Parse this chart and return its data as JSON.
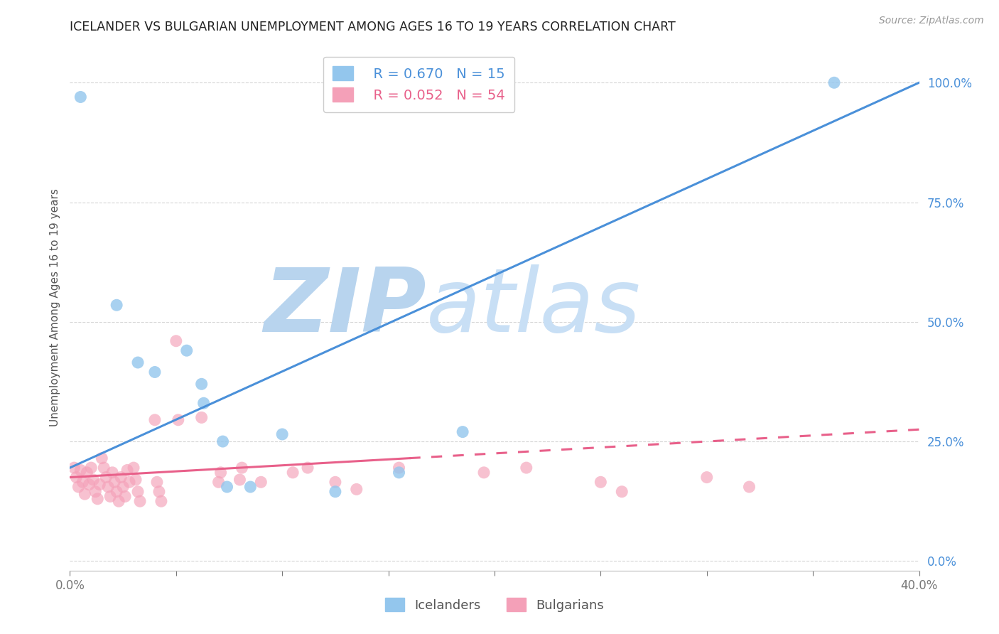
{
  "title": "ICELANDER VS BULGARIAN UNEMPLOYMENT AMONG AGES 16 TO 19 YEARS CORRELATION CHART",
  "source": "Source: ZipAtlas.com",
  "ylabel": "Unemployment Among Ages 16 to 19 years",
  "xlim": [
    0.0,
    0.4
  ],
  "ylim": [
    -0.02,
    1.08
  ],
  "yticks": [
    0.0,
    0.25,
    0.5,
    0.75,
    1.0
  ],
  "ytick_labels": [
    "0.0%",
    "25.0%",
    "50.0%",
    "75.0%",
    "100.0%"
  ],
  "xticks": [
    0.0,
    0.05,
    0.1,
    0.15,
    0.2,
    0.25,
    0.3,
    0.35,
    0.4
  ],
  "icelanders_R": 0.67,
  "icelanders_N": 15,
  "bulgarians_R": 0.052,
  "bulgarians_N": 54,
  "icelanders_color": "#93c6ed",
  "bulgarians_color": "#f4a0b8",
  "icelanders_line_color": "#4a90d9",
  "bulgarians_line_color": "#e8608a",
  "watermark_zip": "ZIP",
  "watermark_atlas": "atlas",
  "watermark_color_zip": "#b8d4ee",
  "watermark_color_atlas": "#c8dff5",
  "icelanders_x": [
    0.005,
    0.022,
    0.032,
    0.04,
    0.055,
    0.062,
    0.063,
    0.072,
    0.074,
    0.085,
    0.1,
    0.125,
    0.155,
    0.185,
    0.36
  ],
  "icelanders_y": [
    0.97,
    0.535,
    0.415,
    0.395,
    0.44,
    0.37,
    0.33,
    0.25,
    0.155,
    0.155,
    0.265,
    0.145,
    0.185,
    0.27,
    1.0
  ],
  "bulgarians_x": [
    0.002,
    0.003,
    0.004,
    0.005,
    0.006,
    0.007,
    0.008,
    0.009,
    0.01,
    0.011,
    0.012,
    0.013,
    0.014,
    0.015,
    0.016,
    0.017,
    0.018,
    0.019,
    0.02,
    0.021,
    0.022,
    0.023,
    0.024,
    0.025,
    0.026,
    0.027,
    0.028,
    0.03,
    0.031,
    0.032,
    0.033,
    0.04,
    0.041,
    0.042,
    0.043,
    0.05,
    0.051,
    0.062,
    0.07,
    0.071,
    0.08,
    0.081,
    0.09,
    0.105,
    0.112,
    0.125,
    0.135,
    0.155,
    0.195,
    0.215,
    0.25,
    0.26,
    0.3,
    0.32
  ],
  "bulgarians_y": [
    0.195,
    0.175,
    0.155,
    0.19,
    0.165,
    0.14,
    0.185,
    0.16,
    0.195,
    0.17,
    0.145,
    0.13,
    0.16,
    0.215,
    0.195,
    0.175,
    0.155,
    0.135,
    0.185,
    0.165,
    0.145,
    0.125,
    0.175,
    0.155,
    0.135,
    0.19,
    0.165,
    0.195,
    0.17,
    0.145,
    0.125,
    0.295,
    0.165,
    0.145,
    0.125,
    0.46,
    0.295,
    0.3,
    0.165,
    0.185,
    0.17,
    0.195,
    0.165,
    0.185,
    0.195,
    0.165,
    0.15,
    0.195,
    0.185,
    0.195,
    0.165,
    0.145,
    0.175,
    0.155
  ],
  "icel_line_x0": 0.0,
  "icel_line_y0": 0.195,
  "icel_line_x1": 0.4,
  "icel_line_y1": 1.0,
  "bulg_line_solid_x0": 0.0,
  "bulg_line_solid_y0": 0.175,
  "bulg_line_solid_x1": 0.16,
  "bulg_line_solid_y1": 0.215,
  "bulg_line_dash_x0": 0.16,
  "bulg_line_dash_y0": 0.215,
  "bulg_line_dash_x1": 0.4,
  "bulg_line_dash_y1": 0.275
}
